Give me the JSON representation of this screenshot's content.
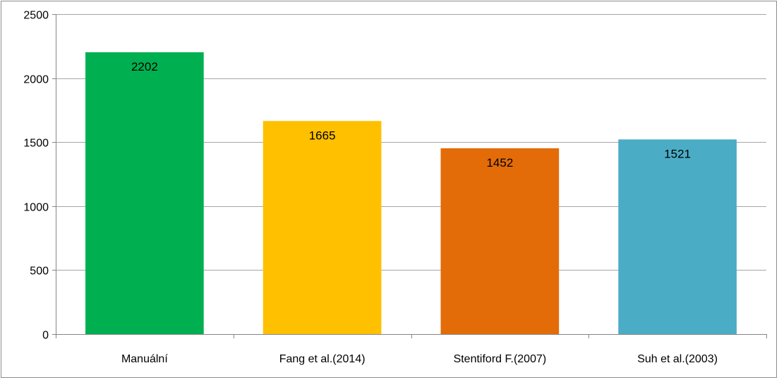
{
  "chart_data": {
    "type": "bar",
    "title": "",
    "xlabel": "",
    "ylabel": "",
    "categories": [
      "Manuální",
      "Fang et al.(2014)",
      "Stentiford F.(2007)",
      "Suh et al.(2003)"
    ],
    "values": [
      2202,
      1665,
      1452,
      1521
    ],
    "data_labels": [
      "2202",
      "1665",
      "1452",
      "1521"
    ],
    "bar_colors": [
      "#00b050",
      "#ffc000",
      "#e36c09",
      "#4bacc6"
    ],
    "ylim": [
      0,
      2500
    ],
    "y_ticks": [
      0,
      500,
      1000,
      1500,
      2000,
      2500
    ],
    "y_tick_labels": [
      "0",
      "500",
      "1000",
      "1500",
      "2000",
      "2500"
    ],
    "grid": true,
    "grid_color": "#a6a6a6",
    "legend": "none"
  }
}
